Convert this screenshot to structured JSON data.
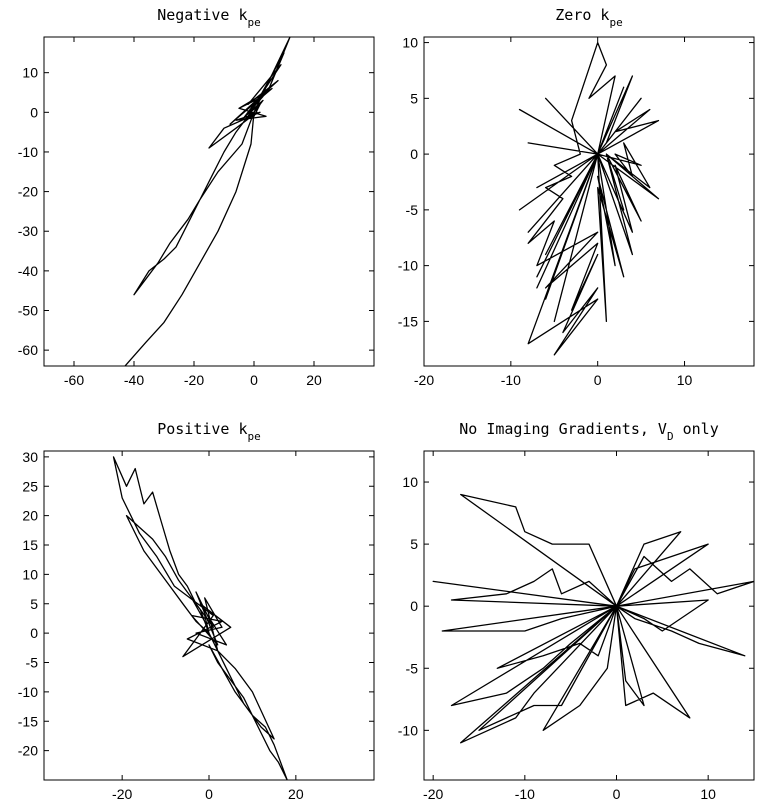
{
  "chart_data": [
    {
      "type": "line",
      "title": "Negative k",
      "title_subscript": "pe",
      "xlim": [
        -70,
        40
      ],
      "ylim": [
        -64,
        19
      ],
      "xticks": [
        -60,
        -40,
        -20,
        0,
        20
      ],
      "yticks": [
        10,
        0,
        -10,
        -20,
        -30,
        -40,
        -50,
        -60
      ],
      "xtick_labels": [
        "-60",
        "-40",
        "-20",
        "0",
        "20"
      ],
      "ytick_labels": [
        "10",
        "0",
        "-10",
        "-20",
        "-30",
        "-40",
        "-50",
        "-60"
      ],
      "grid": false,
      "x": [
        0,
        3,
        -3,
        4,
        -5,
        6,
        -8,
        8,
        -2,
        9,
        2,
        10,
        5,
        12,
        0,
        -4,
        -12,
        -18,
        -22,
        -25,
        -28,
        -32,
        -36,
        -40,
        -35,
        -30,
        -26,
        -22,
        -18,
        -14,
        -10,
        -6,
        -3,
        -1,
        0,
        2,
        -3,
        1,
        -4,
        3,
        -5,
        4,
        -6,
        2,
        -10,
        -15,
        -6,
        1,
        -2,
        0,
        -1,
        -6,
        -12,
        -18,
        -24,
        -30,
        -36,
        -43
      ],
      "y": [
        0,
        3,
        -1,
        5,
        1,
        6,
        -3,
        8,
        2,
        12,
        4,
        15,
        6,
        19,
        0,
        -8,
        -15,
        -22,
        -27,
        -30,
        -33,
        -38,
        -42,
        -46,
        -40,
        -37,
        -34,
        -28,
        -22,
        -16,
        -10,
        -5,
        -2,
        0,
        -1,
        2,
        -1,
        3,
        -2,
        4,
        1,
        -1,
        -2,
        0,
        -4,
        -9,
        -4,
        0,
        -1,
        0,
        -8,
        -20,
        -30,
        -38,
        -46,
        -53,
        -58,
        -64
      ]
    },
    {
      "type": "line",
      "title": "Zero k",
      "title_subscript": "pe",
      "xlim": [
        -20,
        18
      ],
      "ylim": [
        -19,
        10.5
      ],
      "xticks": [
        -20,
        -10,
        0,
        10
      ],
      "yticks": [
        10,
        5,
        0,
        -5,
        -10,
        -15
      ],
      "xtick_labels": [
        "-20",
        "-10",
        "0",
        "10"
      ],
      "ytick_labels": [
        "10",
        "5",
        "0",
        "-5",
        "-10",
        "-15"
      ],
      "grid": false,
      "x": [
        0,
        -6,
        0,
        -9,
        0,
        -8,
        0,
        -7,
        0,
        -9,
        0,
        -8,
        0,
        -6,
        0,
        -7,
        0,
        -6,
        0,
        -5,
        0,
        -7,
        0,
        -8,
        0,
        -5,
        0,
        -4,
        0,
        -3,
        0,
        -6,
        0,
        -7,
        -5,
        -8,
        -4,
        -6,
        -3,
        -5,
        -2,
        -3,
        0,
        1,
        -1,
        2,
        0,
        3,
        0,
        4,
        1,
        5,
        0,
        6,
        2,
        7,
        0,
        5,
        2,
        4,
        3,
        6,
        1,
        3,
        1,
        7,
        0,
        4,
        2,
        5,
        1,
        4,
        0,
        2,
        0,
        3,
        0,
        1,
        0
      ],
      "y": [
        0,
        5,
        0,
        4,
        0,
        1,
        0,
        -3,
        0,
        -5,
        0,
        -7,
        0,
        -9,
        0,
        -11,
        0,
        -13,
        0,
        -15,
        0,
        -12,
        0,
        -17,
        -13,
        -18,
        -12,
        -16,
        -9,
        -14,
        -8,
        -12,
        -7,
        -10,
        -6,
        -8,
        -4,
        -3,
        -2,
        -1,
        0,
        3,
        10,
        8,
        5,
        7,
        0,
        6,
        0,
        7,
        1,
        5,
        0,
        4,
        2,
        3,
        0,
        -1,
        0,
        -2,
        1,
        -3,
        0,
        -5,
        0,
        -4,
        0,
        -7,
        -1,
        -6,
        0,
        -9,
        0,
        -10,
        -2,
        -11,
        -3,
        -15,
        0
      ],
      "series_comment": ""
    },
    {
      "type": "line",
      "title": "Positive k",
      "title_subscript": "pe",
      "xlim": [
        -38,
        38
      ],
      "ylim": [
        -25,
        31
      ],
      "xticks": [
        -20,
        0,
        20
      ],
      "yticks": [
        30,
        25,
        20,
        15,
        10,
        5,
        0,
        -5,
        -10,
        -15,
        -20
      ],
      "xtick_labels": [
        "-20",
        "0",
        "20"
      ],
      "ytick_labels": [
        "30",
        "25",
        "20",
        "15",
        "10",
        "5",
        "0",
        "-5",
        "-10",
        "-15",
        "-20"
      ],
      "grid": false,
      "x": [
        0,
        -2,
        1,
        -3,
        2,
        -4,
        3,
        -5,
        2,
        -1,
        3,
        -3,
        4,
        -2,
        5,
        -6,
        1,
        -8,
        -12,
        -16,
        -20,
        -22,
        -19,
        -17,
        -15,
        -13,
        -11,
        -9,
        -7,
        -5,
        -3,
        -1,
        0,
        2,
        4,
        6,
        8,
        10,
        12,
        14,
        16,
        18,
        15,
        13,
        10,
        8,
        5,
        2,
        0,
        3,
        6,
        9,
        12,
        15,
        10,
        6,
        2,
        0,
        -3,
        -6,
        -9,
        -12,
        -15,
        -19,
        -16,
        -13,
        -10,
        -7,
        -4,
        -1,
        0
      ],
      "y": [
        0,
        4,
        1,
        7,
        -2,
        3,
        2,
        -1,
        -3,
        6,
        1,
        0,
        -2,
        5,
        1,
        -4,
        3,
        8,
        13,
        17,
        23,
        30,
        25,
        28,
        22,
        24,
        19,
        14,
        10,
        8,
        5,
        3,
        0,
        -3,
        -6,
        -9,
        -12,
        -14,
        -17,
        -20,
        -22,
        -25,
        -19,
        -16,
        -14,
        -11,
        -8,
        -5,
        -2,
        -6,
        -10,
        -13,
        -16,
        -18,
        -10,
        -6,
        -3,
        0,
        2,
        5,
        8,
        11,
        14,
        20,
        18,
        16,
        13,
        9,
        6,
        2,
        0
      ]
    },
    {
      "type": "line",
      "title": "No Imaging Gradients, V",
      "title_subscript": "D",
      "title_suffix": " only",
      "xlim": [
        -21,
        15
      ],
      "ylim": [
        -14,
        12.5
      ],
      "xticks": [
        -20,
        -10,
        0,
        10
      ],
      "yticks": [
        10,
        5,
        0,
        -5,
        -10
      ],
      "xtick_labels": [
        "-20",
        "-10",
        "0",
        "10"
      ],
      "ytick_labels": [
        "10",
        "5",
        "0",
        "-5",
        "-10"
      ],
      "grid": false,
      "x": [
        0,
        -17,
        -11,
        -10,
        -7,
        -3,
        0,
        -20,
        0,
        -18,
        -12,
        -9,
        -7,
        -6,
        -3,
        0,
        -19,
        -10,
        -6,
        0,
        -13,
        -8,
        -4,
        -2,
        0,
        -18,
        -12,
        -10,
        -8,
        -5,
        0,
        -15,
        -9,
        -6,
        0,
        -17,
        -11,
        -9,
        0,
        -8,
        -4,
        -1,
        0,
        15,
        11,
        8,
        6,
        3,
        0,
        10,
        5,
        3,
        0,
        14,
        9,
        6,
        2,
        0,
        8,
        4,
        1,
        0,
        7,
        3,
        0,
        10,
        6,
        2,
        0,
        3,
        1,
        0
      ],
      "y": [
        0,
        9,
        8,
        6,
        5,
        5,
        0,
        2,
        0,
        0.5,
        1,
        2,
        3,
        1,
        2,
        0,
        -2,
        -2,
        -1,
        0,
        -5,
        -4,
        -3,
        -4,
        0,
        -8,
        -7,
        -6,
        -5,
        -3,
        0,
        -10,
        -8,
        -8,
        0,
        -11,
        -9,
        -7,
        0,
        -10,
        -8,
        -5,
        0,
        2,
        1,
        3,
        2,
        4,
        0,
        0.5,
        -2,
        -1,
        0,
        -4,
        -3,
        -2,
        -1,
        0,
        -9,
        -7,
        -8,
        0,
        6,
        5,
        0,
        5,
        4,
        3,
        0,
        -8,
        -6,
        0
      ]
    }
  ]
}
